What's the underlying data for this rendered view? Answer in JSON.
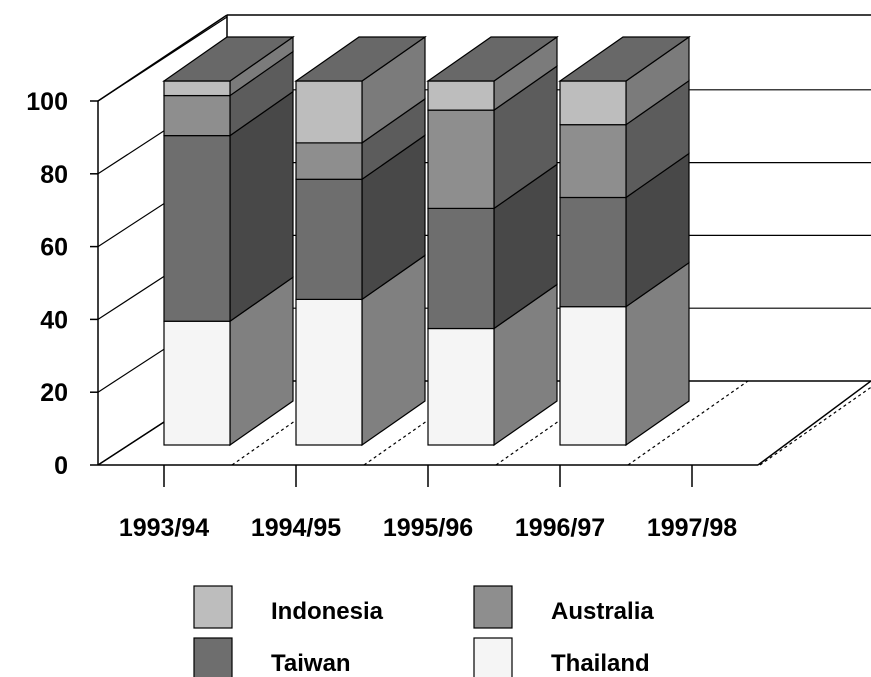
{
  "chart_data": {
    "type": "bar",
    "stacked": true,
    "three_d": true,
    "title": "",
    "xlabel": "",
    "ylabel": "",
    "ylim": [
      0,
      100
    ],
    "yticks": [
      "0",
      "20",
      "40",
      "60",
      "80",
      "100"
    ],
    "categories": [
      "1993/94",
      "1994/95",
      "1995/96",
      "1996/97",
      "1997/98"
    ],
    "series": [
      {
        "name": "Thailand",
        "color": "#f5f5f5",
        "values": [
          34,
          40,
          32,
          38,
          0
        ]
      },
      {
        "name": "Taiwan",
        "color": "#6e6e6e",
        "values": [
          51,
          33,
          33,
          30,
          0
        ]
      },
      {
        "name": "Australia",
        "color": "#8e8e8e",
        "values": [
          11,
          10,
          27,
          20,
          0
        ]
      },
      {
        "name": "Indonesia",
        "color": "#bdbdbd",
        "values": [
          4,
          17,
          8,
          12,
          0
        ]
      }
    ],
    "legend": {
      "position": "bottom",
      "order": [
        "Indonesia",
        "Australia",
        "Taiwan",
        "Thailand"
      ]
    },
    "grid": true
  }
}
